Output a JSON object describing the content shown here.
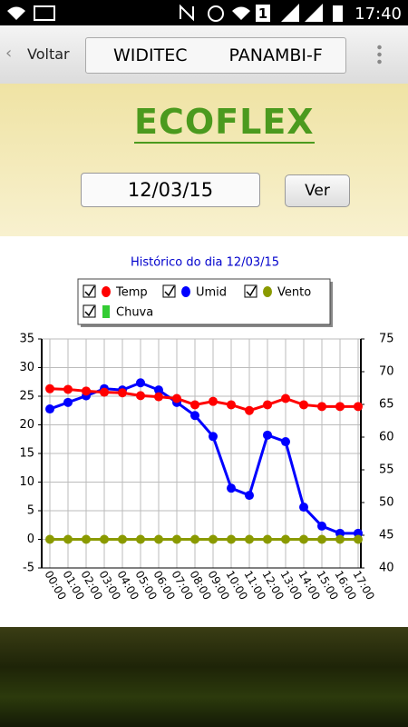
{
  "status_bar": {
    "sim": "1",
    "time": "17:40"
  },
  "toolbar": {
    "back": "Voltar",
    "spinner_left": "WIDITEC",
    "spinner_right": "PANAMBI-F"
  },
  "header": {
    "logo": "ECOFLEX",
    "date": "12/03/15",
    "button": "Ver"
  },
  "chart_data": {
    "type": "line",
    "title": "Histórico do dia 12/03/15",
    "categories": [
      "00:00",
      "01:00",
      "02:00",
      "03:00",
      "04:00",
      "05:00",
      "06:00",
      "07:00",
      "08:00",
      "09:00",
      "10:00",
      "11:00",
      "12:00",
      "13:00",
      "14:00",
      "15:00",
      "16:00",
      "17:00"
    ],
    "series": [
      {
        "name": "Temp",
        "color": "#ff0000",
        "values": [
          26.3,
          26.2,
          25.9,
          25.7,
          25.6,
          25.1,
          24.9,
          24.6,
          23.5,
          24.1,
          23.5,
          22.5,
          23.5,
          24.6,
          23.5,
          23.2,
          23.2,
          23.2
        ]
      },
      {
        "name": "Umid",
        "color": "#0000ff",
        "axis": "y2",
        "values": [
          64.3,
          65.3,
          66.3,
          67.4,
          67.2,
          68.3,
          67.2,
          65.3,
          63.3,
          60.1,
          52.2,
          51.1,
          60.3,
          59.3,
          49.3,
          46.4,
          45.3,
          45.3
        ]
      },
      {
        "name": "Vento",
        "color": "#8a9a00",
        "values": [
          0,
          0,
          0,
          0,
          0,
          0,
          0,
          0,
          0,
          0,
          0,
          0,
          0,
          0,
          0,
          0,
          0,
          0
        ]
      },
      {
        "name": "Chuva",
        "color": "#33cc33",
        "type": "bar",
        "values": [
          0,
          0,
          0,
          0,
          0,
          0,
          0,
          0,
          0,
          0,
          0,
          0,
          0,
          0,
          0,
          0,
          0,
          0
        ]
      }
    ],
    "ylim": [
      -5,
      35
    ],
    "yticks": [
      -5,
      0,
      5,
      10,
      15,
      20,
      25,
      30,
      35
    ],
    "y2lim": [
      40,
      75
    ],
    "y2ticks": [
      40,
      45,
      50,
      55,
      60,
      65,
      70,
      75
    ],
    "grid": true
  }
}
